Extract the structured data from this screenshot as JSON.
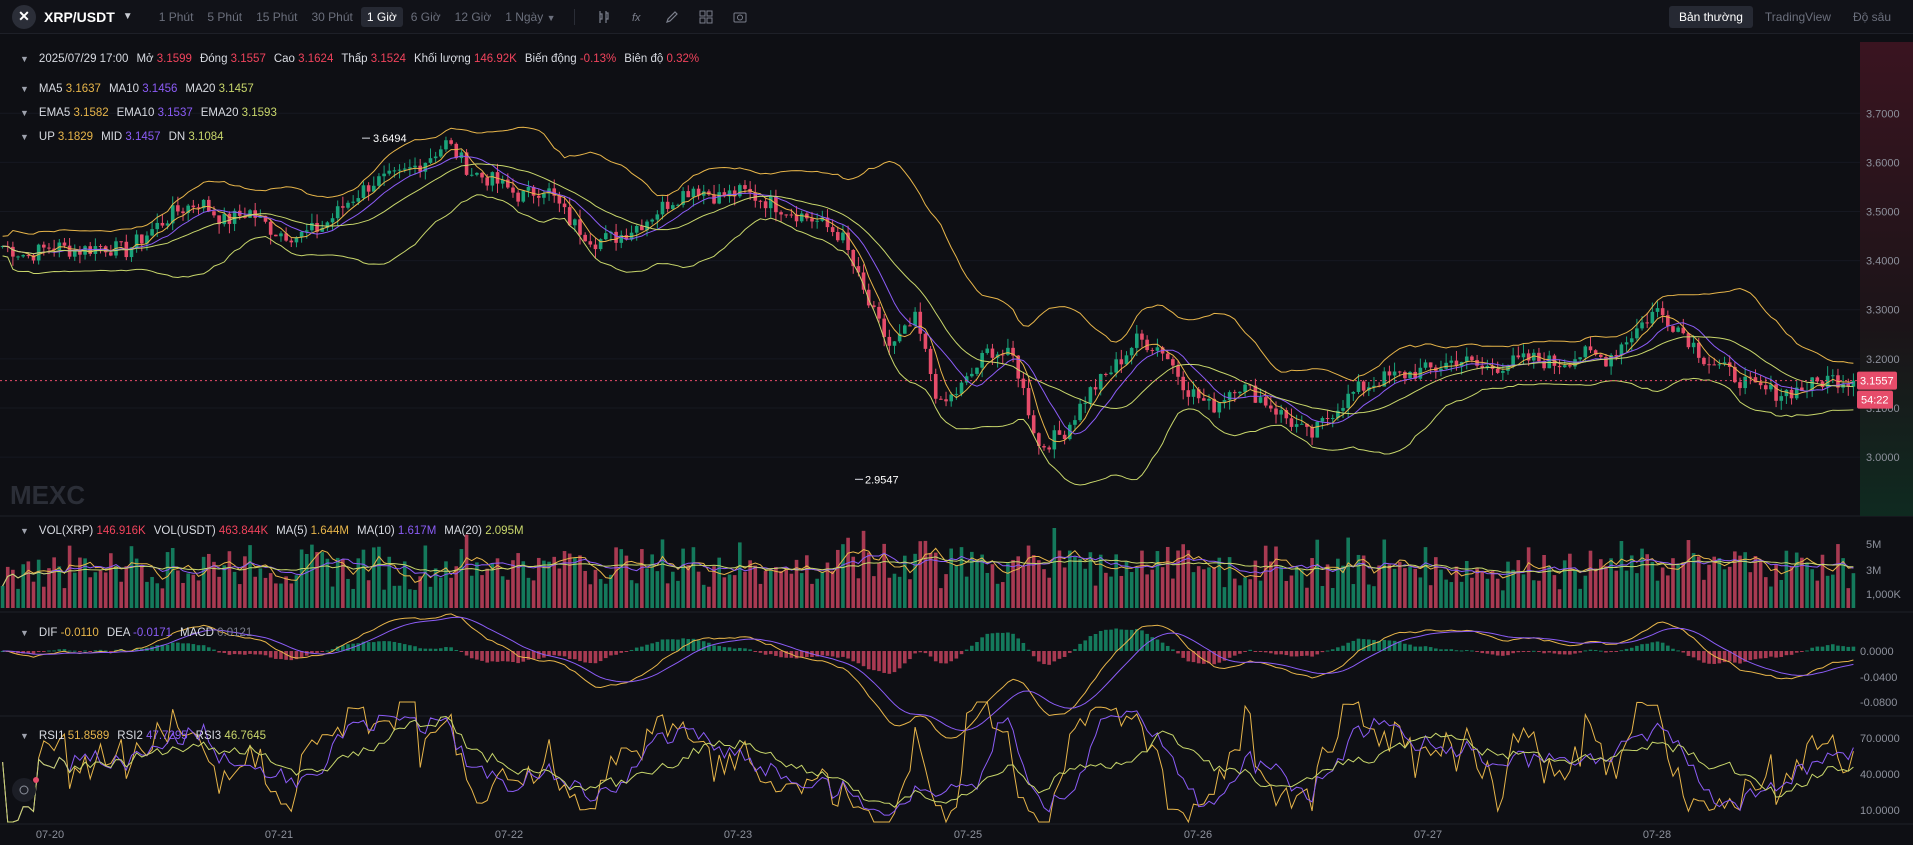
{
  "toolbar": {
    "symbol": "XRP/USDT",
    "intervals": [
      "1 Phút",
      "5 Phút",
      "15 Phút",
      "30 Phút",
      "1 Giờ",
      "6 Giờ",
      "12 Giờ",
      "1 Ngày"
    ],
    "active_interval": "1 Giờ",
    "views": [
      "Bản thường",
      "TradingView",
      "Độ sâu"
    ],
    "active_view": "Bản thường"
  },
  "ohlc": {
    "time": "2025/07/29 17:00",
    "open_label": "Mở",
    "open": "3.1599",
    "close_label": "Đóng",
    "close": "3.1557",
    "high_label": "Cao",
    "high": "3.1624",
    "low_label": "Thấp",
    "low": "3.1524",
    "volume_label": "Khối lượng",
    "volume": "146.92K",
    "change_label": "Biến động",
    "change": "-0.13%",
    "amplitude_label": "Biên độ",
    "amplitude": "0.32%"
  },
  "ma": {
    "ma5_label": "MA5",
    "ma5": "3.1637",
    "ma10_label": "MA10",
    "ma10": "3.1456",
    "ma20_label": "MA20",
    "ma20": "3.1457"
  },
  "ema": {
    "ema5_label": "EMA5",
    "ema5": "3.1582",
    "ema10_label": "EMA10",
    "ema10": "3.1537",
    "ema20_label": "EMA20",
    "ema20": "3.1593"
  },
  "boll": {
    "up_label": "UP",
    "up": "3.1829",
    "mid_label": "MID",
    "mid": "3.1457",
    "dn_label": "DN",
    "dn": "3.1084"
  },
  "vol": {
    "vol_xrp_label": "VOL(XRP)",
    "vol_xrp": "146.916K",
    "vol_usdt_label": "VOL(USDT)",
    "vol_usdt": "463.844K",
    "ma5_label": "MA(5)",
    "ma5": "1.644M",
    "ma10_label": "MA(10)",
    "ma10": "1.617M",
    "ma20_label": "MA(20)",
    "ma20": "2.095M"
  },
  "macd": {
    "dif_label": "DIF",
    "dif": "-0.0110",
    "dea_label": "DEA",
    "dea": "-0.0171",
    "macd_label": "MACD",
    "macd": "0.0121"
  },
  "rsi": {
    "rsi1_label": "RSI1",
    "rsi1": "51.8589",
    "rsi2_label": "RSI2",
    "rsi2": "47.7295",
    "rsi3_label": "RSI3",
    "rsi3": "46.7645"
  },
  "watermark": "MEXC",
  "price_tag": {
    "price": "3.1557",
    "countdown": "54:22"
  },
  "annotations": {
    "high": "3.6494",
    "low": "2.9547"
  },
  "colors": {
    "up": "#1aa37a",
    "down": "#e64c6a",
    "ma5": "#e7b54a",
    "ma10": "#8b5cf6",
    "ma20": "#c8d66b"
  },
  "chart_data": [
    {
      "type": "candlestick",
      "title": "XRP/USDT 1 Giờ",
      "x_ticks": [
        "07-20",
        "07-21",
        "07-22",
        "07-23",
        "07-25",
        "07-26",
        "07-27",
        "07-28"
      ],
      "y_ticks": [
        "3.7000",
        "3.6000",
        "3.5000",
        "3.4000",
        "3.3000",
        "3.2000",
        "3.1000",
        "3.0000"
      ],
      "ylim": [
        2.88,
        3.78
      ],
      "last_price": 3.1557,
      "high_marker": 3.6494,
      "low_marker": 2.9547,
      "close_path": [
        3.43,
        3.41,
        3.43,
        3.42,
        3.43,
        3.42,
        3.46,
        3.5,
        3.52,
        3.48,
        3.5,
        3.46,
        3.45,
        3.47,
        3.52,
        3.56,
        3.57,
        3.6,
        3.64,
        3.58,
        3.56,
        3.53,
        3.55,
        3.48,
        3.44,
        3.45,
        3.48,
        3.52,
        3.55,
        3.53,
        3.54,
        3.52,
        3.5,
        3.48,
        3.45,
        3.32,
        3.22,
        3.28,
        3.1,
        3.15,
        3.22,
        3.2,
        3.02,
        3.05,
        3.13,
        3.18,
        3.24,
        3.22,
        3.14,
        3.1,
        3.15,
        3.12,
        3.08,
        3.04,
        3.1,
        3.14,
        3.16,
        3.17,
        3.18,
        3.2,
        3.18,
        3.19,
        3.2,
        3.19,
        3.21,
        3.2,
        3.25,
        3.3,
        3.26,
        3.2,
        3.17,
        3.14,
        3.13,
        3.14,
        3.16,
        3.1557
      ],
      "y2_ticks": [
        "5M",
        "3M",
        "1,000K"
      ],
      "macd_ticks": [
        "0.0000",
        "-0.0400",
        "-0.0800"
      ],
      "rsi_ticks": [
        "70.0000",
        "40.0000",
        "10.0000"
      ]
    }
  ]
}
